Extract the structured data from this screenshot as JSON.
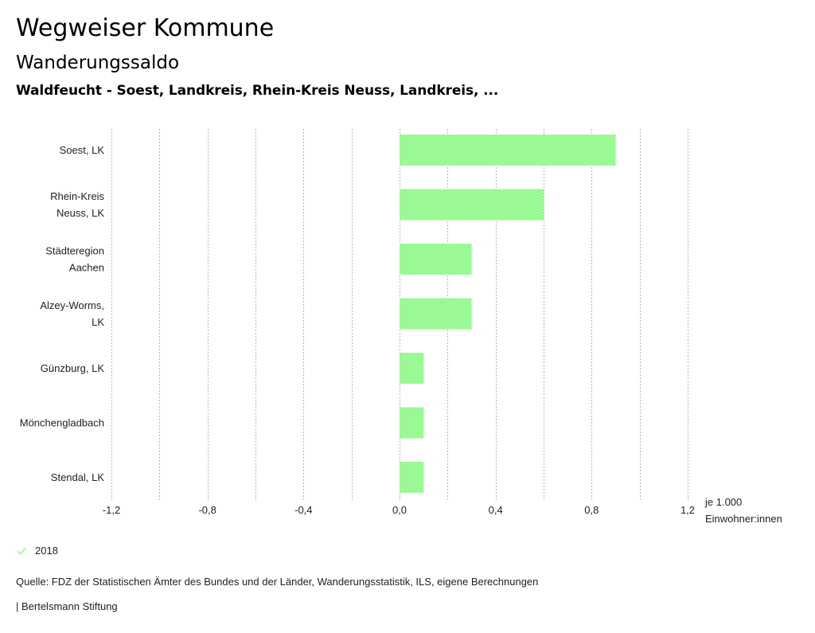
{
  "header": {
    "title": "Wegweiser Kommune",
    "subtitle": "Wanderungssaldo",
    "region": "Waldfeucht - Soest, Landkreis, Rhein-Kreis Neuss, Landkreis, ..."
  },
  "chart_data": {
    "type": "bar",
    "orientation": "horizontal",
    "title": "Wanderungssaldo",
    "categories": [
      [
        "Soest, LK"
      ],
      [
        "Rhein-Kreis",
        "Neuss, LK"
      ],
      [
        "Städteregion",
        "Aachen"
      ],
      [
        "Alzey-Worms,",
        "LK"
      ],
      [
        "Günzburg, LK"
      ],
      [
        "Mönchengladbach"
      ],
      [
        "Stendal, LK"
      ]
    ],
    "series": [
      {
        "name": "2018",
        "values": [
          0.9,
          0.6,
          0.3,
          0.3,
          0.1,
          0.1,
          0.1
        ],
        "color": "#9bf995"
      }
    ],
    "xlim": [
      -1.2,
      1.2
    ],
    "xticks": [
      -1.2,
      -0.8,
      -0.4,
      0.0,
      0.4,
      0.8,
      1.2
    ],
    "xtick_labels": [
      "-1,2",
      "-0,8",
      "-0,4",
      "0,0",
      "0,4",
      "0,8",
      "1,2"
    ],
    "grid_step": 0.2,
    "grid": true,
    "xlabel": [
      "je 1.000",
      "Einwohner:innen"
    ],
    "ylabel": "",
    "legend_position": "bottom-left"
  },
  "legend": {
    "items": [
      {
        "label": "2018",
        "color": "#9bf995",
        "icon": "check-icon"
      }
    ]
  },
  "footer": {
    "source": "Quelle: FDZ der Statistischen Ämter des Bundes und der Länder, Wanderungsstatistik, ILS, eigene Berechnungen",
    "credit": "| Bertelsmann Stiftung"
  },
  "colors": {
    "bar": "#9bf995",
    "grid": "#b5b5b5",
    "text": "#222222"
  }
}
